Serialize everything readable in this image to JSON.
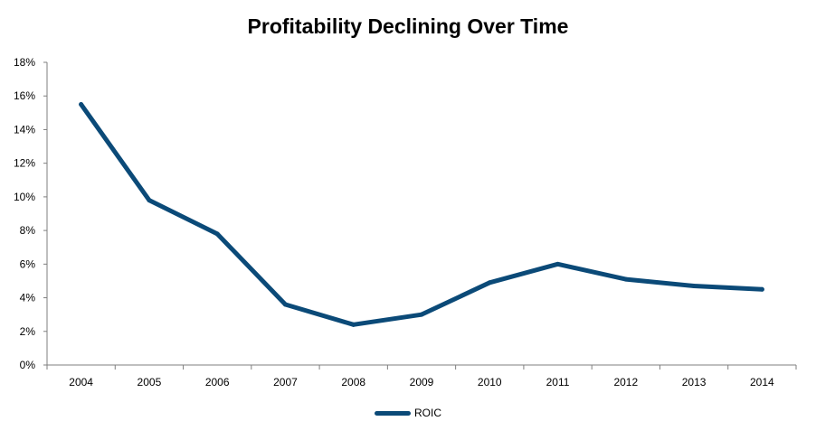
{
  "chart_data": {
    "type": "line",
    "title": "Profitability Declining Over Time",
    "categories": [
      "2004",
      "2005",
      "2006",
      "2007",
      "2008",
      "2009",
      "2010",
      "2011",
      "2012",
      "2013",
      "2014"
    ],
    "series": [
      {
        "name": "ROIC",
        "values": [
          15.5,
          9.8,
          7.8,
          3.6,
          2.4,
          3.0,
          4.9,
          6.0,
          5.1,
          4.7,
          4.5
        ],
        "color": "#0b4a78"
      }
    ],
    "y_ticks": [
      "0%",
      "2%",
      "4%",
      "6%",
      "8%",
      "10%",
      "12%",
      "14%",
      "16%",
      "18%"
    ],
    "ylim": [
      0,
      18
    ],
    "y_unit": "%",
    "grid": false,
    "legend_position": "bottom"
  }
}
